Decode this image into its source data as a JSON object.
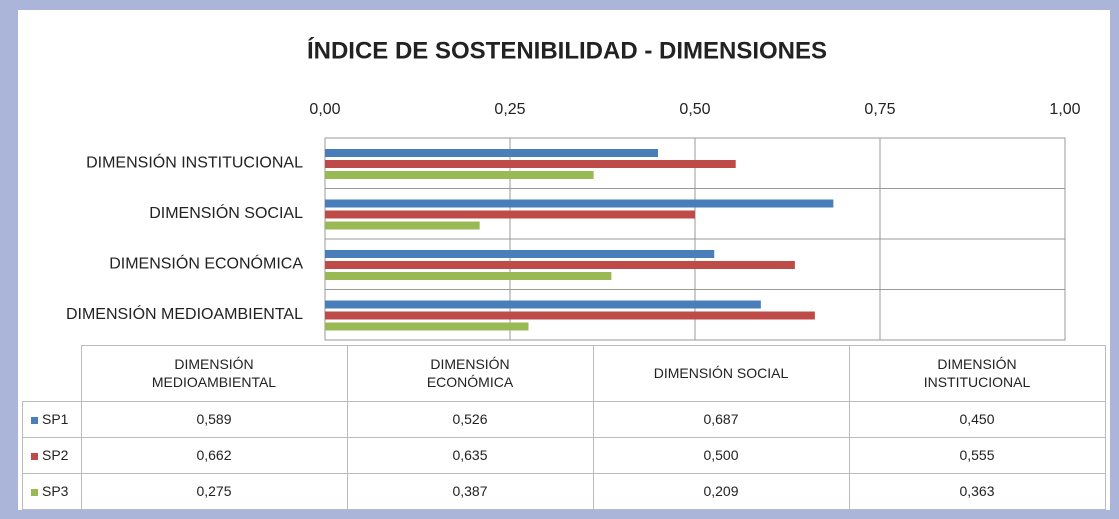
{
  "chart_data": {
    "type": "bar",
    "orientation": "horizontal",
    "title": "ÍNDICE DE SOSTENIBILIDAD - DIMENSIONES",
    "categories": [
      "DIMENSIÓN MEDIOAMBIENTAL",
      "DIMENSIÓN ECONÓMICA",
      "DIMENSIÓN SOCIAL",
      "DIMENSIÓN INSTITUCIONAL"
    ],
    "series": [
      {
        "name": "SP1",
        "color": "#4a7ebb",
        "values": [
          0.589,
          0.526,
          0.687,
          0.45
        ],
        "value_labels": [
          "0,589",
          "0,526",
          "0,687",
          "0,450"
        ]
      },
      {
        "name": "SP2",
        "color": "#be4b48",
        "values": [
          0.662,
          0.635,
          0.5,
          0.555
        ],
        "value_labels": [
          "0,662",
          "0,635",
          "0,500",
          "0,555"
        ]
      },
      {
        "name": "SP3",
        "color": "#98b954",
        "values": [
          0.275,
          0.387,
          0.209,
          0.363
        ],
        "value_labels": [
          "0,275",
          "0,387",
          "0,209",
          "0,363"
        ]
      }
    ],
    "xlim": [
      0,
      1
    ],
    "xticks": [
      {
        "value": 0,
        "label": "0,00"
      },
      {
        "value": 0.25,
        "label": "0,25"
      },
      {
        "value": 0.5,
        "label": "0,50"
      },
      {
        "value": 0.75,
        "label": "0,75"
      },
      {
        "value": 1,
        "label": "1,00"
      }
    ],
    "grid": true
  }
}
